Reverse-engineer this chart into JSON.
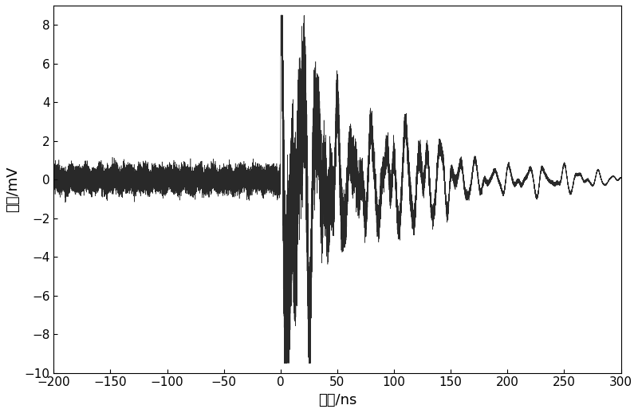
{
  "xlim": [
    -200,
    300
  ],
  "ylim": [
    -10,
    9
  ],
  "xticks": [
    -200,
    -150,
    -100,
    -50,
    0,
    50,
    100,
    150,
    200,
    250,
    300
  ],
  "yticks": [
    -10,
    -8,
    -6,
    -4,
    -2,
    0,
    2,
    4,
    6,
    8
  ],
  "xlabel": "时间/ns",
  "ylabel": "幅値/mV",
  "line_color": "#111111",
  "background_color": "#ffffff",
  "t_start": -200,
  "t_end": 300,
  "linewidth": 0.4,
  "font_size_label": 13,
  "font_size_tick": 11,
  "N": 80000,
  "pre_noise_amp": 0.28,
  "burst_start": 0.0,
  "peak_amp": 8.5,
  "decay_rate": 0.01,
  "carrier_freq1": 0.065,
  "carrier_freq2": 0.1,
  "carrier_freq3": 0.14,
  "post_noise_scale": 0.35
}
